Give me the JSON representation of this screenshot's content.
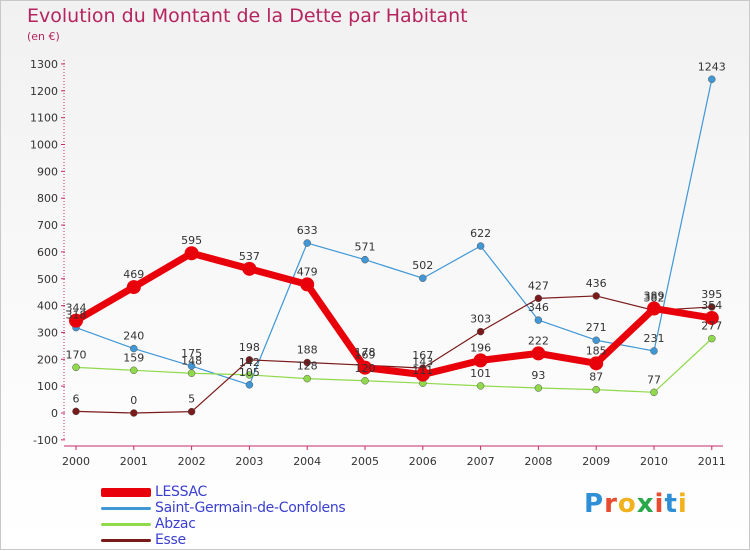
{
  "title": "Evolution du Montant de la Dette par Habitant",
  "subtitle": "(en €)",
  "logo": {
    "text": "Proxiti",
    "colors": [
      "#2f8fd6",
      "#e84b2e",
      "#f2b21e",
      "#2aa84a",
      "#e84b2e",
      "#2f8fd6",
      "#f2b21e"
    ]
  },
  "chart_data": {
    "type": "line",
    "x": [
      "2000",
      "2001",
      "2002",
      "2003",
      "2004",
      "2005",
      "2006",
      "2007",
      "2008",
      "2009",
      "2010",
      "2011"
    ],
    "ylim": [
      -100,
      1300
    ],
    "yticks": [
      "-100",
      "0",
      "100",
      "200",
      "300",
      "400",
      "500",
      "600",
      "700",
      "800",
      "900",
      "1000",
      "1100",
      "1200",
      "1300"
    ],
    "grid": false,
    "legend_position": "bottom-left",
    "series": [
      {
        "name": "LESSAC",
        "color": "#e8000b",
        "width": 7,
        "marker": 7,
        "values": [
          344,
          469,
          595,
          537,
          479,
          169,
          143,
          196,
          222,
          185,
          389,
          354
        ],
        "labels": [
          "344",
          "469",
          "595",
          "537",
          "479",
          "169",
          "143",
          "196",
          "222",
          "185",
          "389",
          "354"
        ]
      },
      {
        "name": "Saint-Germain-de-Confolens",
        "color": "#3f97d6",
        "width": 1.2,
        "marker": 3.5,
        "values": [
          318,
          240,
          175,
          105,
          633,
          571,
          502,
          622,
          346,
          271,
          231,
          1243
        ],
        "labels": [
          "318",
          "240",
          "175",
          "105",
          "633",
          "571",
          "502",
          "622",
          "346",
          "271",
          "231",
          "1243"
        ]
      },
      {
        "name": "Abzac",
        "color": "#8fd94a",
        "width": 1.2,
        "marker": 3.5,
        "values": [
          170,
          159,
          148,
          142,
          128,
          120,
          111,
          101,
          93,
          87,
          77,
          277
        ],
        "labels": [
          "170",
          "159",
          "148",
          "142",
          "128",
          "120",
          "111",
          "101",
          "93",
          "87",
          "77",
          "277"
        ]
      },
      {
        "name": "Esse",
        "color": "#7a1a1a",
        "width": 1.2,
        "marker": 3.5,
        "values": [
          6,
          0,
          5,
          198,
          188,
          178,
          167,
          303,
          427,
          436,
          382,
          395
        ],
        "labels": [
          "6",
          "0",
          "5",
          "198",
          "188",
          "178",
          "167",
          "303",
          "427",
          "436",
          "382",
          "395"
        ]
      }
    ]
  }
}
